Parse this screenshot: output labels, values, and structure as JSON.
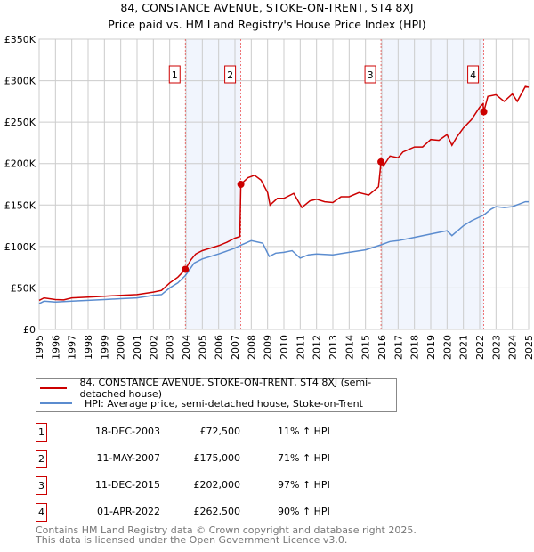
{
  "chart_data": {
    "type": "line",
    "title": "84, CONSTANCE AVENUE, STOKE-ON-TRENT, ST4 8XJ",
    "subtitle": "Price paid vs. HM Land Registry's House Price Index (HPI)",
    "xlim": [
      1995,
      2025
    ],
    "ylim": [
      0,
      350000
    ],
    "grid": true,
    "x_ticks": [
      "1995",
      "1996",
      "1997",
      "1998",
      "1999",
      "2000",
      "2001",
      "2002",
      "2003",
      "2004",
      "2005",
      "2006",
      "2007",
      "2008",
      "2009",
      "2010",
      "2011",
      "2012",
      "2013",
      "2014",
      "2015",
      "2016",
      "2017",
      "2018",
      "2019",
      "2020",
      "2021",
      "2022",
      "2023",
      "2024",
      "2025"
    ],
    "y_ticks": [
      {
        "v": 0,
        "label": "£0"
      },
      {
        "v": 50000,
        "label": "£50K"
      },
      {
        "v": 100000,
        "label": "£100K"
      },
      {
        "v": 150000,
        "label": "£150K"
      },
      {
        "v": 200000,
        "label": "£200K"
      },
      {
        "v": 250000,
        "label": "£250K"
      },
      {
        "v": 300000,
        "label": "£300K"
      },
      {
        "v": 350000,
        "label": "£350K"
      }
    ],
    "series": [
      {
        "name": "84, CONSTANCE AVENUE, STOKE-ON-TRENT, ST4 8XJ (semi-detached house)",
        "color": "#cc0000",
        "x": [
          1995,
          1995.3,
          1996,
          1996.5,
          1997,
          1998,
          1999,
          2000,
          2001,
          2002,
          2002.5,
          2003,
          2003.5,
          2003.96,
          2004.3,
          2004.6,
          2005,
          2005.5,
          2006,
          2006.5,
          2007,
          2007.3,
          2007.36,
          2007.8,
          2008.2,
          2008.6,
          2009,
          2009.15,
          2009.6,
          2010,
          2010.6,
          2011.1,
          2011.6,
          2012,
          2012.5,
          2013,
          2013.5,
          2014,
          2014.6,
          2015.2,
          2015.8,
          2015.95,
          2016.1,
          2016.5,
          2017,
          2017.3,
          2018,
          2018.5,
          2019,
          2019.5,
          2020,
          2020.3,
          2020.6,
          2021,
          2021.5,
          2022,
          2022.2,
          2022.25,
          2022.5,
          2023,
          2023.5,
          2024,
          2024.3,
          2024.8,
          2025
        ],
        "y": [
          35000,
          38000,
          36000,
          35500,
          38000,
          39000,
          40000,
          41000,
          42000,
          45000,
          47000,
          56000,
          63000,
          72500,
          84000,
          91000,
          95000,
          98000,
          101000,
          105000,
          110000,
          112000,
          175000,
          183000,
          186000,
          180000,
          165000,
          150000,
          158000,
          158000,
          164000,
          147000,
          155000,
          157000,
          154000,
          153000,
          160000,
          160000,
          165000,
          162000,
          172000,
          202000,
          197000,
          209000,
          207000,
          214000,
          220000,
          220000,
          229000,
          228000,
          235000,
          222000,
          232000,
          243000,
          253000,
          268000,
          272000,
          262500,
          281000,
          283000,
          275000,
          284000,
          275000,
          293000,
          292000
        ]
      },
      {
        "name": "HPI: Average price, semi-detached house, Stoke-on-Trent",
        "color": "#5b8ccf",
        "x": [
          1995,
          1995.3,
          1996,
          1997,
          1998,
          1999,
          2000,
          2001,
          2002,
          2002.5,
          2003,
          2003.5,
          2003.96,
          2004.5,
          2005,
          2006,
          2007,
          2007.4,
          2008,
          2008.7,
          2009.1,
          2009.5,
          2010,
          2010.5,
          2011,
          2011.5,
          2012,
          2013,
          2014,
          2015,
          2015.95,
          2016.5,
          2017,
          2018,
          2019,
          2019.5,
          2020,
          2020.3,
          2021,
          2021.5,
          2022.25,
          2022.7,
          2023,
          2023.5,
          2024,
          2024.8,
          2025
        ],
        "y": [
          31000,
          34000,
          33000,
          34000,
          35000,
          36000,
          37000,
          38000,
          41000,
          42000,
          50000,
          56000,
          65000,
          80000,
          85000,
          91000,
          98000,
          102000,
          107000,
          104000,
          88000,
          92000,
          93000,
          95000,
          86000,
          90000,
          91000,
          90000,
          93000,
          96000,
          102000,
          106000,
          107000,
          111000,
          115000,
          117000,
          119000,
          113000,
          125000,
          131000,
          138000,
          145000,
          148000,
          147000,
          148000,
          154000,
          154000
        ]
      }
    ],
    "sales_markers": [
      {
        "label": "1",
        "x": 2003.96,
        "y": 72500
      },
      {
        "label": "2",
        "x": 2007.36,
        "y": 175000
      },
      {
        "label": "3",
        "x": 2015.95,
        "y": 202000
      },
      {
        "label": "4",
        "x": 2022.25,
        "y": 262500
      }
    ],
    "shaded_ranges": [
      [
        2003.96,
        2007.36
      ],
      [
        2015.95,
        2022.25
      ]
    ]
  },
  "legend": {
    "red_label": "84, CONSTANCE AVENUE, STOKE-ON-TRENT, ST4 8XJ (semi-detached house)",
    "blue_label": "HPI: Average price, semi-detached house, Stoke-on-Trent"
  },
  "sales": [
    {
      "num": "1",
      "date": "18-DEC-2003",
      "price": "£72,500",
      "hpi": "11% ↑ HPI"
    },
    {
      "num": "2",
      "date": "11-MAY-2007",
      "price": "£175,000",
      "hpi": "71% ↑ HPI"
    },
    {
      "num": "3",
      "date": "11-DEC-2015",
      "price": "£202,000",
      "hpi": "97% ↑ HPI"
    },
    {
      "num": "4",
      "date": "01-APR-2022",
      "price": "£262,500",
      "hpi": "90% ↑ HPI"
    }
  ],
  "footer": {
    "line1": "Contains HM Land Registry data © Crown copyright and database right 2025.",
    "line2": "This data is licensed under the Open Government Licence v3.0."
  }
}
